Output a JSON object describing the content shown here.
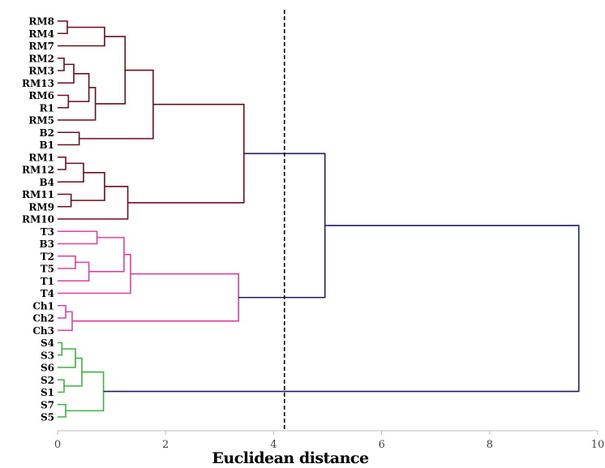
{
  "chart_data": {
    "type": "dendrogram",
    "orientation": "horizontal",
    "xlabel": "Euclidean distance",
    "xlim": [
      0,
      10
    ],
    "xticks": [
      0,
      2,
      4,
      6,
      8,
      10
    ],
    "grid": false,
    "cut_line": {
      "value": 4.2,
      "style": "dashed"
    },
    "colors": {
      "maroon": "#6b0f1a",
      "pink": "#e040a0",
      "green": "#3fb23f",
      "navy": "#1f1f66",
      "cut": "#000000",
      "axis": "#bfbfbf"
    },
    "leaves": [
      "RM8",
      "RM4",
      "RM7",
      "RM2",
      "RM3",
      "RM13",
      "RM6",
      "R1",
      "RM5",
      "B2",
      "B1",
      "RM1",
      "RM12",
      "B4",
      "RM11",
      "RM9",
      "RM10",
      "T3",
      "B3",
      "T2",
      "T5",
      "T1",
      "T4",
      "Ch1",
      "Ch2",
      "Ch3",
      "S4",
      "S3",
      "S6",
      "S2",
      "S1",
      "S7",
      "S5"
    ],
    "merges": [
      {
        "left": "RM8",
        "right": "RM4",
        "height": 0.18,
        "color": "maroon"
      },
      {
        "left": "#0",
        "right": "RM7",
        "height": 0.87,
        "color": "maroon"
      },
      {
        "left": "RM2",
        "right": "RM3",
        "height": 0.12,
        "color": "maroon"
      },
      {
        "left": "#2",
        "right": "RM13",
        "height": 0.3,
        "color": "maroon"
      },
      {
        "left": "RM6",
        "right": "R1",
        "height": 0.2,
        "color": "maroon"
      },
      {
        "left": "#3",
        "right": "#4",
        "height": 0.58,
        "color": "maroon"
      },
      {
        "left": "#5",
        "right": "RM5",
        "height": 0.7,
        "color": "maroon"
      },
      {
        "left": "#1",
        "right": "#6",
        "height": 1.25,
        "color": "maroon"
      },
      {
        "left": "B2",
        "right": "B1",
        "height": 0.4,
        "color": "maroon"
      },
      {
        "left": "#7",
        "right": "#8",
        "height": 1.77,
        "color": "maroon"
      },
      {
        "left": "RM1",
        "right": "RM12",
        "height": 0.15,
        "color": "maroon"
      },
      {
        "left": "#10",
        "right": "B4",
        "height": 0.48,
        "color": "maroon"
      },
      {
        "left": "RM11",
        "right": "RM9",
        "height": 0.25,
        "color": "maroon"
      },
      {
        "left": "#11",
        "right": "#12",
        "height": 0.87,
        "color": "maroon"
      },
      {
        "left": "#13",
        "right": "RM10",
        "height": 1.3,
        "color": "maroon"
      },
      {
        "left": "#9",
        "right": "#14",
        "height": 3.45,
        "color": "maroon"
      },
      {
        "left": "T3",
        "right": "B3",
        "height": 0.73,
        "color": "pink"
      },
      {
        "left": "T2",
        "right": "T5",
        "height": 0.33,
        "color": "pink"
      },
      {
        "left": "#17",
        "right": "T1",
        "height": 0.58,
        "color": "pink"
      },
      {
        "left": "#16",
        "right": "#18",
        "height": 1.23,
        "color": "pink"
      },
      {
        "left": "#19",
        "right": "T4",
        "height": 1.35,
        "color": "pink"
      },
      {
        "left": "Ch1",
        "right": "Ch2",
        "height": 0.15,
        "color": "pink"
      },
      {
        "left": "#21",
        "right": "Ch3",
        "height": 0.27,
        "color": "pink"
      },
      {
        "left": "#20",
        "right": "#22",
        "height": 3.35,
        "color": "pink"
      },
      {
        "left": "#15",
        "right": "#23",
        "height": 4.95,
        "color": "navy"
      },
      {
        "left": "S4",
        "right": "S3",
        "height": 0.08,
        "color": "green"
      },
      {
        "left": "#25",
        "right": "S6",
        "height": 0.33,
        "color": "green"
      },
      {
        "left": "S2",
        "right": "S1",
        "height": 0.12,
        "color": "green"
      },
      {
        "left": "#26",
        "right": "#27",
        "height": 0.45,
        "color": "green"
      },
      {
        "left": "S7",
        "right": "S5",
        "height": 0.15,
        "color": "green"
      },
      {
        "left": "#28",
        "right": "#29",
        "height": 0.85,
        "color": "green"
      },
      {
        "left": "#24",
        "right": "#30",
        "height": 9.65,
        "color": "navy"
      }
    ]
  }
}
